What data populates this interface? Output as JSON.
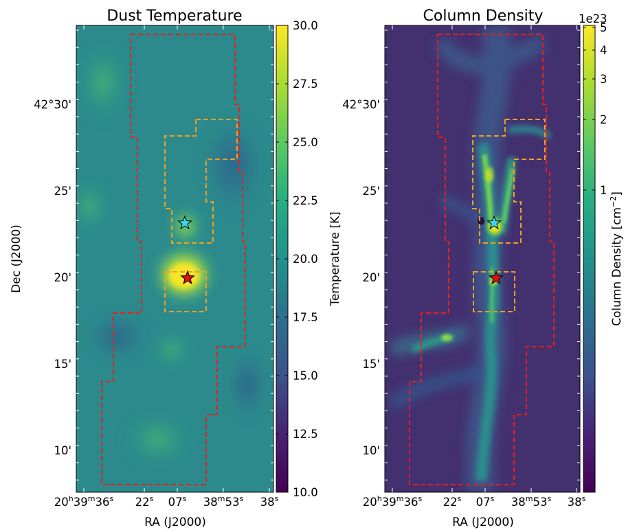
{
  "left_panel": {
    "title": "Dust Temperature",
    "colorbar": {
      "label": "Temperature [K]",
      "ticks": [
        "30.0",
        "27.5",
        "25.0",
        "22.5",
        "20.0",
        "17.5",
        "15.0",
        "12.5",
        "10.0"
      ],
      "range": [
        10.0,
        30.0
      ],
      "colormap": "viridis"
    }
  },
  "right_panel": {
    "title": "Column Density",
    "colorbar": {
      "label": "Column Density [cm",
      "label_sup": "−2",
      "label_end": "]",
      "scale_factor": "1e23",
      "ticks": [
        "5",
        "4",
        "3",
        "2",
        "1"
      ],
      "scale": "log",
      "colormap": "viridis"
    }
  },
  "axes": {
    "xlabel": "RA (J2000)",
    "ylabel": "Dec (J2000)",
    "x_ticks": [
      {
        "pre": "20",
        "sup1": "h",
        "mid": "39",
        "sup2": "m",
        "sec": "36",
        "sup3": "s"
      },
      {
        "sec": "22",
        "sup3": "s"
      },
      {
        "sec": "07",
        "sup3": "s"
      },
      {
        "mid": "38",
        "sup2": "m",
        "sec": "53",
        "sup3": "s"
      },
      {
        "sec": "38",
        "sup3": "s"
      }
    ],
    "y_ticks": [
      "42°30'",
      "25'",
      "20'",
      "15'",
      "10'"
    ]
  },
  "markers": [
    {
      "name": "cyan-star",
      "color": "#39d8f0"
    },
    {
      "name": "red-star",
      "color": "#e01010"
    }
  ],
  "regions": {
    "outer_color": "#e8201c",
    "inner_color": "#f0a020"
  }
}
